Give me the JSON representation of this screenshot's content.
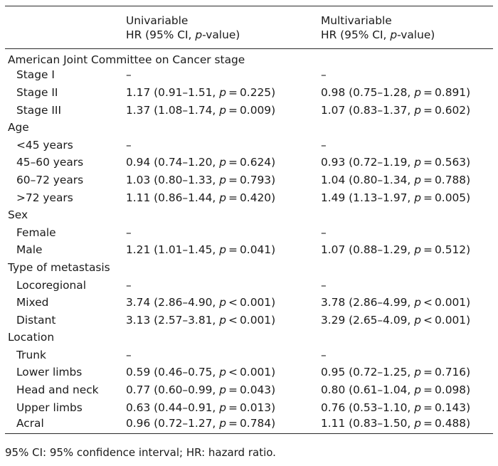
{
  "table": {
    "headers": {
      "col1": "",
      "univariable_line1": "Univariable",
      "univariable_line2_prefix": "HR (95% CI, ",
      "univariable_line2_italic": "p",
      "univariable_line2_suffix": "-value)",
      "multivariable_line1": "Multivariable",
      "multivariable_line2_prefix": "HR (95% CI, ",
      "multivariable_line2_italic": "p",
      "multivariable_line2_suffix": "-value)"
    },
    "rows": [
      {
        "label": "American Joint Committee on Cancer stage",
        "group": true
      },
      {
        "label": "Stage I",
        "uni": {
          "hr": "–"
        },
        "multi": {
          "hr": "–"
        }
      },
      {
        "label": "Stage II",
        "uni": {
          "hr": "1.17 (0.91–1.51, ",
          "p": "p",
          "pv": " = 0.225)"
        },
        "multi": {
          "hr": "0.98 (0.75–1.28, ",
          "p": "p",
          "pv": " = 0.891)"
        }
      },
      {
        "label": "Stage III",
        "uni": {
          "hr": "1.37 (1.08–1.74, ",
          "p": "p",
          "pv": " = 0.009)"
        },
        "multi": {
          "hr": "1.07 (0.83–1.37, ",
          "p": "p",
          "pv": " = 0.602)"
        }
      },
      {
        "label": "Age",
        "group": true
      },
      {
        "label": "<45 years",
        "uni": {
          "hr": "–"
        },
        "multi": {
          "hr": "–"
        }
      },
      {
        "label": "45–60 years",
        "uni": {
          "hr": "0.94 (0.74–1.20, ",
          "p": "p",
          "pv": " = 0.624)"
        },
        "multi": {
          "hr": "0.93 (0.72–1.19, ",
          "p": "p",
          "pv": " = 0.563)"
        }
      },
      {
        "label": "60–72 years",
        "uni": {
          "hr": "1.03 (0.80–1.33, ",
          "p": "p",
          "pv": " = 0.793)"
        },
        "multi": {
          "hr": "1.04 (0.80–1.34, ",
          "p": "p",
          "pv": " = 0.788)"
        }
      },
      {
        "label": ">72 years",
        "uni": {
          "hr": "1.11 (0.86–1.44, ",
          "p": "p",
          "pv": " = 0.420)"
        },
        "multi": {
          "hr": "1.49 (1.13–1.97, ",
          "p": "p",
          "pv": " = 0.005)"
        }
      },
      {
        "label": "Sex",
        "group": true
      },
      {
        "label": "Female",
        "uni": {
          "hr": "–"
        },
        "multi": {
          "hr": "–"
        }
      },
      {
        "label": "Male",
        "uni": {
          "hr": "1.21 (1.01–1.45, ",
          "p": "p",
          "pv": " = 0.041)"
        },
        "multi": {
          "hr": "1.07 (0.88–1.29, ",
          "p": "p",
          "pv": " = 0.512)"
        }
      },
      {
        "label": "Type of metastasis",
        "group": true
      },
      {
        "label": "Locoregional",
        "uni": {
          "hr": "–"
        },
        "multi": {
          "hr": "–"
        }
      },
      {
        "label": "Mixed",
        "uni": {
          "hr": "3.74 (2.86–4.90, ",
          "p": "p",
          "pv": " < 0.001)"
        },
        "multi": {
          "hr": "3.78 (2.86–4.99, ",
          "p": "p",
          "pv": " < 0.001)"
        }
      },
      {
        "label": "Distant",
        "uni": {
          "hr": "3.13 (2.57–3.81, ",
          "p": "p",
          "pv": " < 0.001)"
        },
        "multi": {
          "hr": "3.29 (2.65–4.09, ",
          "p": "p",
          "pv": " < 0.001)"
        }
      },
      {
        "label": "Location",
        "group": true
      },
      {
        "label": "Trunk",
        "uni": {
          "hr": "–"
        },
        "multi": {
          "hr": "–"
        }
      },
      {
        "label": "Lower limbs",
        "uni": {
          "hr": "0.59 (0.46–0.75, ",
          "p": "p",
          "pv": " < 0.001)"
        },
        "multi": {
          "hr": "0.95 (0.72–1.25, ",
          "p": "p",
          "pv": " = 0.716)"
        }
      },
      {
        "label": "Head and neck",
        "uni": {
          "hr": "0.77 (0.60–0.99, ",
          "p": "p",
          "pv": " = 0.043)"
        },
        "multi": {
          "hr": "0.80 (0.61–1.04, ",
          "p": "p",
          "pv": " = 0.098)"
        }
      },
      {
        "label": "Upper limbs",
        "uni": {
          "hr": "0.63 (0.44–0.91, ",
          "p": "p",
          "pv": " = 0.013)"
        },
        "multi": {
          "hr": "0.76 (0.53–1.10, ",
          "p": "p",
          "pv": " = 0.143)"
        }
      },
      {
        "label": "Acral",
        "uni": {
          "hr": "0.96 (0.72–1.27, ",
          "p": "p",
          "pv": " = 0.784)"
        },
        "multi": {
          "hr": "1.11 (0.83–1.50, ",
          "p": "p",
          "pv": " = 0.488)"
        }
      }
    ]
  },
  "footnote": "95% CI: 95% confidence interval; HR: hazard ratio."
}
